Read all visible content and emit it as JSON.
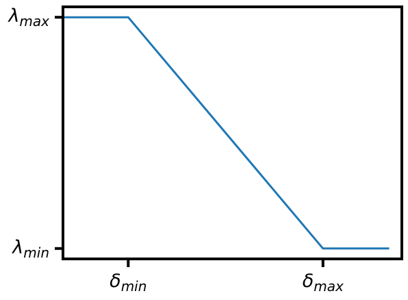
{
  "chart_data": {
    "type": "line",
    "title": "",
    "xlabel": "",
    "ylabel": "",
    "x_ticks": [
      {
        "value": 0,
        "symbol": "δ",
        "sub": "min"
      },
      {
        "value": 1,
        "symbol": "δ",
        "sub": "max"
      }
    ],
    "y_ticks": [
      {
        "value": 0,
        "symbol": "λ",
        "sub": "min"
      },
      {
        "value": 1,
        "symbol": "λ",
        "sub": "max"
      }
    ],
    "xlim": [
      -0.335,
      1.405
    ],
    "ylim": [
      -0.045,
      1.045
    ],
    "series": [
      {
        "color": "#1f77b4",
        "x": [
          -0.34,
          0,
          1,
          1.34
        ],
        "y": [
          1,
          1,
          0,
          0
        ]
      }
    ],
    "grid": false,
    "legend": "none"
  }
}
